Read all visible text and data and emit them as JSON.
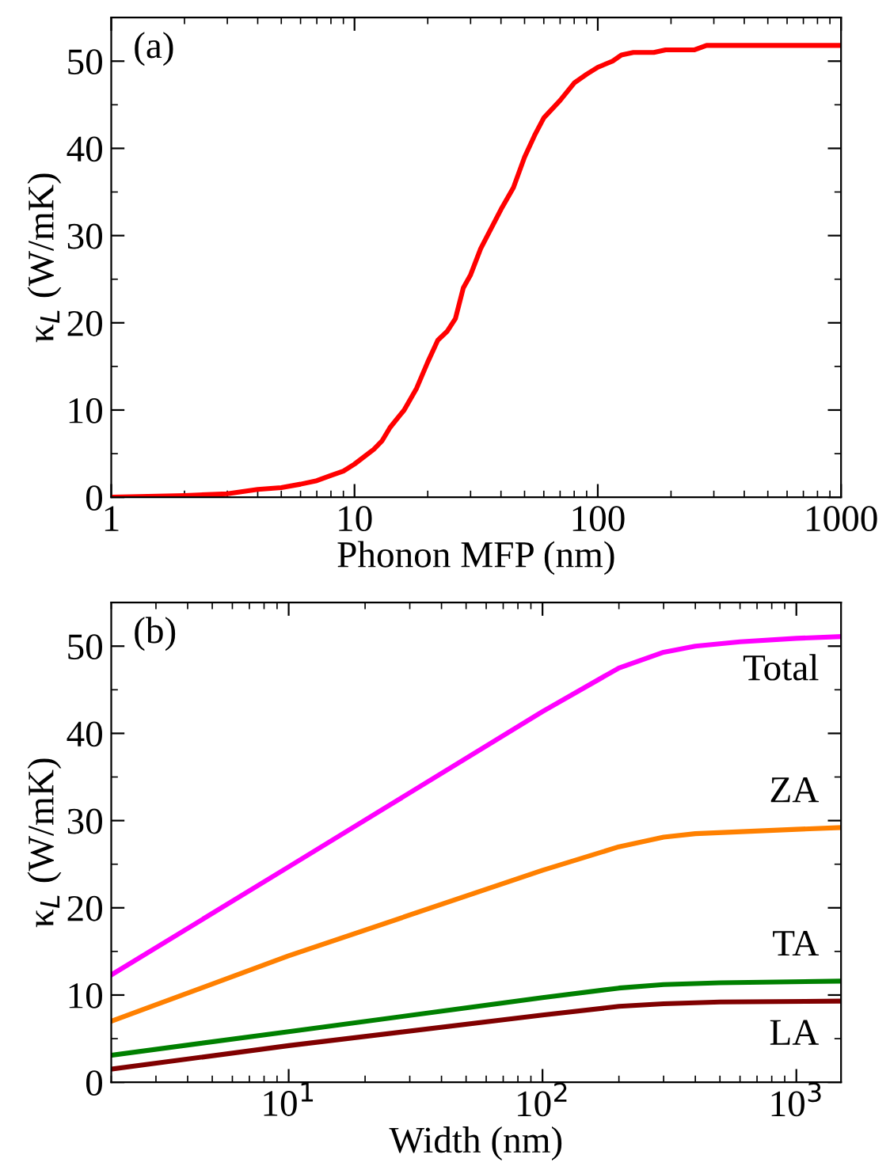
{
  "chart_data": [
    {
      "type": "line",
      "xlabel": "Phonon MFP (nm)",
      "ylabel": "κ$_{L}$ (W/mK)",
      "annotations": [
        "(a)"
      ],
      "log": "x",
      "xlim": [
        1,
        1000
      ],
      "xticks": [
        1,
        10,
        100,
        1000
      ],
      "ylim": [
        0,
        55
      ],
      "yticks": [
        0,
        10,
        20,
        30,
        40,
        50
      ],
      "grid": false,
      "legend": false,
      "series": [
        {
          "color": "#ff0000",
          "x": [
            1,
            2,
            3,
            4,
            5,
            6,
            7,
            8,
            9,
            10,
            12,
            13,
            14,
            16,
            18,
            20,
            22,
            24,
            26,
            28,
            30,
            33,
            40,
            45,
            50,
            55,
            60,
            70,
            80,
            90,
            100,
            115,
            125,
            140,
            170,
            190,
            250,
            280,
            1000
          ],
          "values": [
            0,
            0.2,
            0.4,
            0.9,
            1.1,
            1.5,
            1.9,
            2.5,
            3.0,
            3.8,
            5.5,
            6.5,
            8.0,
            10.0,
            12.5,
            15.5,
            18.0,
            19.0,
            20.5,
            24.0,
            25.5,
            28.5,
            33.0,
            35.5,
            39.0,
            41.5,
            43.5,
            45.5,
            47.5,
            48.5,
            49.3,
            50.0,
            50.7,
            51.0,
            51.0,
            51.3,
            51.3,
            51.8,
            51.8
          ]
        }
      ]
    },
    {
      "type": "line",
      "xlabel": "Width (nm)",
      "ylabel": "κ$_{L}$ (W/mK)",
      "annotations": [
        "(b)"
      ],
      "log": "x",
      "xlim": [
        2,
        1500
      ],
      "xticks": [
        {
          "value": 10,
          "label": "10$^{1}$"
        },
        {
          "value": 100,
          "label": "10$^{2}$"
        },
        {
          "value": 1000,
          "label": "10$^{3}$"
        }
      ],
      "ylim": [
        0,
        55
      ],
      "yticks": [
        0,
        10,
        20,
        30,
        40,
        50
      ],
      "grid": false,
      "legend": false,
      "series": [
        {
          "name": "Total",
          "color": "#ff00ff",
          "x": [
            2,
            10,
            100,
            200,
            300,
            400,
            600,
            1000,
            1500
          ],
          "values": [
            12.3,
            24.7,
            42.5,
            47.5,
            49.3,
            50.0,
            50.5,
            50.9,
            51.1
          ]
        },
        {
          "name": "ZA",
          "color": "#ff8000",
          "x": [
            2,
            10,
            100,
            200,
            300,
            400,
            1000,
            1500
          ],
          "values": [
            7.0,
            14.5,
            24.3,
            27.0,
            28.1,
            28.5,
            29.0,
            29.2
          ]
        },
        {
          "name": "TA",
          "color": "#008000",
          "x": [
            2,
            10,
            100,
            200,
            300,
            500,
            1500
          ],
          "values": [
            3.1,
            5.8,
            9.7,
            10.8,
            11.2,
            11.4,
            11.6
          ]
        },
        {
          "name": "LA",
          "color": "#800000",
          "x": [
            2,
            10,
            100,
            200,
            300,
            500,
            1500
          ],
          "values": [
            1.5,
            4.2,
            7.7,
            8.7,
            9.0,
            9.2,
            9.3
          ]
        }
      ]
    }
  ]
}
